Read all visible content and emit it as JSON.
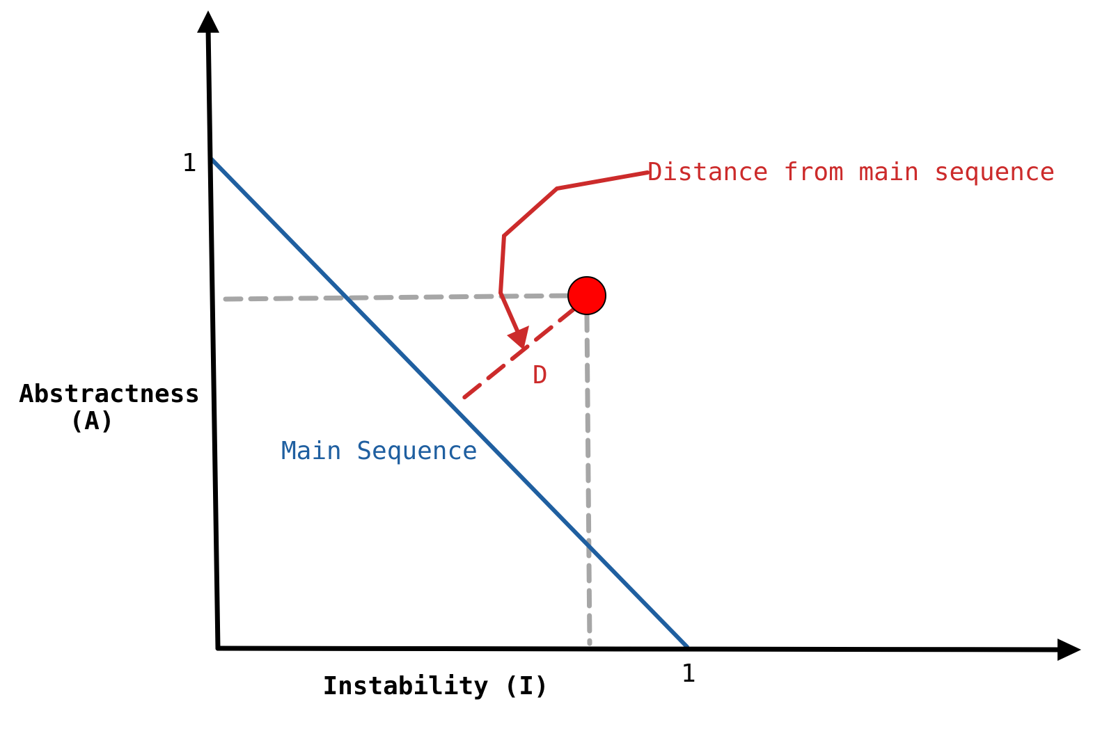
{
  "axes": {
    "y_label_line1": "Abstractness",
    "y_label_line2": "(A)",
    "x_label": "Instability (I)",
    "y_tick": "1",
    "x_tick": "1"
  },
  "main_sequence": {
    "label": "Main Sequence",
    "color": "#1f5fa0"
  },
  "point": {
    "instability": 0.8,
    "abstractness": 0.72,
    "color": "#ff0000"
  },
  "distance": {
    "label": "D",
    "callout": "Distance from main sequence",
    "color": "#cc2b2b"
  },
  "guide_color": "#a6a6a6",
  "axis_color": "#000000"
}
